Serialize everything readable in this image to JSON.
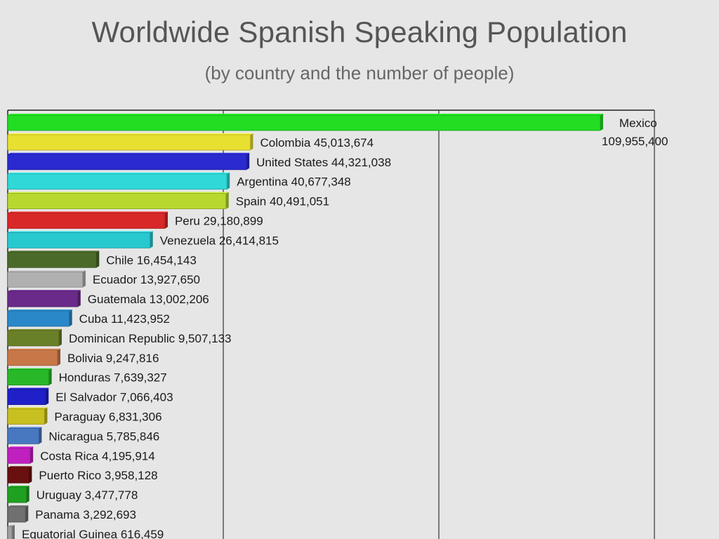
{
  "chart_data": {
    "type": "bar",
    "orientation": "horizontal",
    "title": "Worldwide Spanish Speaking Population",
    "subtitle": "(by country and the number of people)",
    "grid": true,
    "xlim": [
      0,
      120000000
    ],
    "series": [
      {
        "values": [
          109955400,
          45013674,
          44321038,
          40677348,
          40491051,
          29180899,
          26414815,
          16454143,
          13927650,
          13002206,
          11423952,
          9507133,
          9247816,
          7639327,
          7066403,
          6831306,
          5785846,
          4195914,
          3958128,
          3477778,
          3292693,
          616459
        ]
      }
    ],
    "categories": [
      "Mexico",
      "Colombia",
      "United States",
      "Argentina",
      "Spain",
      "Peru",
      "Venezuela",
      "Chile",
      "Ecuador",
      "Guatemala",
      "Cuba",
      "Dominican Republic",
      "Bolivia",
      "Honduras",
      "El Salvador",
      "Paraguay",
      "Nicaragua",
      "Costa Rica",
      "Puerto Rico",
      "Uruguay",
      "Panama",
      "Equatorial Guinea"
    ],
    "value_labels": [
      "109,955,400",
      "45,013,674",
      "44,321,038",
      "40,677,348",
      "40,491,051",
      "29,180,899",
      "26,414,815",
      "16,454,143",
      "13,927,650",
      "13,002,206",
      "11,423,952",
      "9,507,133",
      "9,247,816",
      "7,639,327",
      "7,066,403",
      "6,831,306",
      "5,785,846",
      "4,195,914",
      "3,958,128",
      "3,477,778",
      "3,292,693",
      "616,459"
    ],
    "colors": [
      "#22dd22",
      "#e8e030",
      "#2a2ad0",
      "#30d8d8",
      "#b8d830",
      "#d82828",
      "#28c8d0",
      "#4a6a2a",
      "#b0b0b0",
      "#6a2a8a",
      "#2a88c8",
      "#6a8028",
      "#c87848",
      "#28b828",
      "#2020c8",
      "#c8c020",
      "#4878c0",
      "#c020c0",
      "#6a1010",
      "#20a020",
      "#707070",
      "#a0a0a0"
    ]
  }
}
